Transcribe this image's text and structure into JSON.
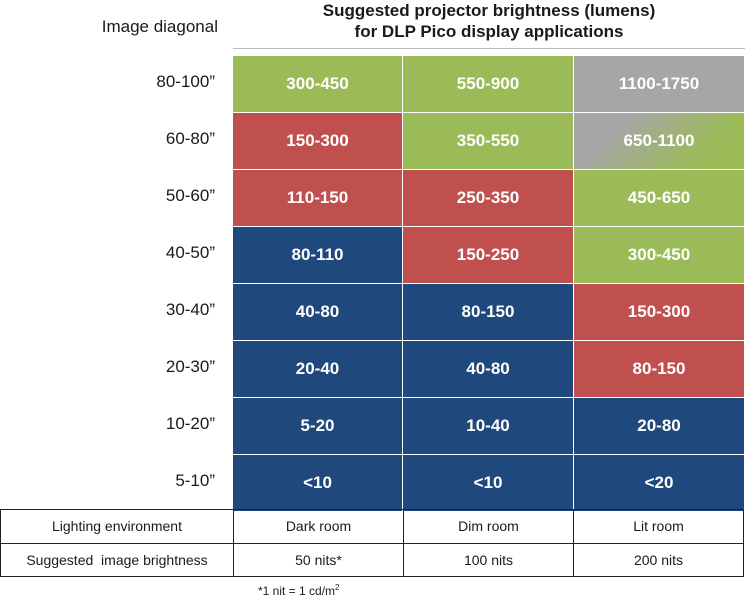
{
  "header": {
    "row_label_title": "Image diagonal",
    "title_line1": "Suggested projector brightness (lumens)",
    "title_line2": "for DLP Pico display applications"
  },
  "colors": {
    "green": "#9bbb59",
    "red": "#c0504d",
    "blue": "#1f497d",
    "gray": "#a6a6a6"
  },
  "chart_data": {
    "type": "table",
    "title": "Suggested projector brightness (lumens) for DLP Pico display applications",
    "row_header": "Image diagonal",
    "rows": [
      "80-100”",
      "60-80”",
      "50-60”",
      "40-50”",
      "30-40”",
      "20-30”",
      "10-20”",
      "5-10”"
    ],
    "columns": [
      "Dark room",
      "Dim room",
      "Lit room"
    ],
    "cells": [
      [
        "300-450",
        "550-900",
        "1100-1750"
      ],
      [
        "150-300",
        "350-550",
        "650-1100"
      ],
      [
        "110-150",
        "250-350",
        "450-650"
      ],
      [
        "80-110",
        "150-250",
        "300-450"
      ],
      [
        "40-80",
        "80-150",
        "150-300"
      ],
      [
        "20-40",
        "40-80",
        "80-150"
      ],
      [
        "5-20",
        "10-40",
        "20-80"
      ],
      [
        "<10",
        "<10",
        "<20"
      ]
    ],
    "cell_colors": [
      [
        "green",
        "green",
        "gray"
      ],
      [
        "red",
        "green",
        "gray-green"
      ],
      [
        "red",
        "red",
        "green"
      ],
      [
        "blue",
        "red",
        "green"
      ],
      [
        "blue",
        "blue",
        "red"
      ],
      [
        "blue",
        "blue",
        "red"
      ],
      [
        "blue",
        "blue",
        "blue"
      ],
      [
        "blue",
        "blue",
        "blue"
      ]
    ]
  },
  "footer": {
    "lighting_label": "Lighting environment",
    "lighting_values": [
      "Dark room",
      "Dim room",
      "Lit room"
    ],
    "brightness_label": "Suggested  image brightness",
    "brightness_values": [
      "50 nits*",
      "100 nits",
      "200 nits"
    ]
  },
  "footnote": {
    "text": "*1 nit = 1 cd/m",
    "superscript": "2"
  }
}
